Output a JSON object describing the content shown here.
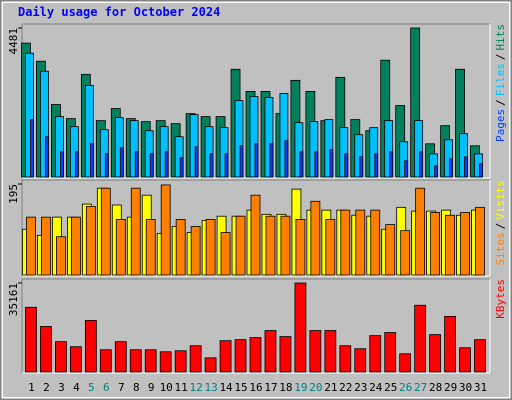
{
  "chart_data": [
    {
      "type": "bar",
      "title": "Daily usage for October 2024",
      "ylim": [
        0,
        4481
      ],
      "yticks": [
        4481
      ],
      "legend_separator": "/",
      "series": [
        {
          "name": "Hits",
          "color": "#00805c",
          "values": [
            4027,
            3482,
            2180,
            1756,
            3088,
            1696,
            2059,
            1756,
            1665,
            1696,
            1605,
            1907,
            1817,
            1817,
            3240,
            2574,
            2574,
            1907,
            2907,
            2574,
            1696,
            2997,
            1726,
            1393,
            3512,
            2150,
            4481,
            999,
            1544,
            3240,
            939
          ]
        },
        {
          "name": "Files",
          "color": "#00c0ff",
          "values": [
            3724,
            3179,
            1817,
            1514,
            2755,
            1423,
            1786,
            1696,
            1393,
            1514,
            1211,
            1877,
            1514,
            1484,
            2301,
            2422,
            2392,
            2513,
            1635,
            1665,
            1726,
            1484,
            1272,
            1484,
            1696,
            1060,
            1696,
            696,
            1120,
            1302,
            696
          ]
        },
        {
          "name": "Pages",
          "color": "#0040ff",
          "values": [
            1726,
            1212,
            757,
            757,
            1000,
            697,
            878,
            757,
            697,
            757,
            576,
            908,
            697,
            697,
            939,
            1000,
            1000,
            1090,
            757,
            757,
            818,
            697,
            606,
            697,
            757,
            485,
            757,
            333,
            545,
            606,
            394
          ]
        }
      ]
    },
    {
      "type": "bar",
      "ylim": [
        0,
        195
      ],
      "yticks": [
        195
      ],
      "legend_separator": "/",
      "series": [
        {
          "name": "Visits",
          "color": "#ffff00",
          "values": [
            98,
            85,
            124,
            124,
            152,
            186,
            150,
            124,
            171,
            89,
            104,
            91,
            117,
            126,
            126,
            139,
            130,
            130,
            184,
            139,
            139,
            139,
            128,
            126,
            98,
            145,
            137,
            137,
            139,
            128,
            139
          ]
        },
        {
          "name": "Sites",
          "color": "#ff8000",
          "values": [
            124,
            124,
            82,
            124,
            147,
            186,
            119,
            186,
            119,
            193,
            119,
            104,
            119,
            91,
            126,
            171,
            126,
            126,
            119,
            158,
            119,
            139,
            139,
            139,
            108,
            95,
            186,
            134,
            128,
            134,
            145
          ]
        }
      ]
    },
    {
      "type": "bar",
      "ylim": [
        0,
        35161
      ],
      "yticks": [
        35161
      ],
      "categories": [
        "1",
        "2",
        "3",
        "4",
        "5",
        "6",
        "7",
        "8",
        "9",
        "10",
        "11",
        "12",
        "13",
        "14",
        "15",
        "16",
        "17",
        "18",
        "19",
        "20",
        "21",
        "22",
        "23",
        "24",
        "25",
        "26",
        "27",
        "28",
        "29",
        "30",
        "31"
      ],
      "weekend_label_color": "#008080",
      "weekday_label_color": "#000000",
      "weekends": [
        "5",
        "6",
        "12",
        "13",
        "19",
        "20",
        "26",
        "27"
      ],
      "series": [
        {
          "name": "KBytes",
          "color": "#ff0000",
          "values": [
            25572,
            17980,
            11987,
            9989,
            20378,
            8790,
            11987,
            8790,
            8790,
            7991,
            8391,
            10389,
            5594,
            12386,
            12786,
            13585,
            16382,
            13985,
            35161,
            16382,
            16382,
            10389,
            9190,
            14384,
            15583,
            7192,
            26371,
            14784,
            21976,
            9589,
            12786
          ]
        }
      ]
    }
  ]
}
